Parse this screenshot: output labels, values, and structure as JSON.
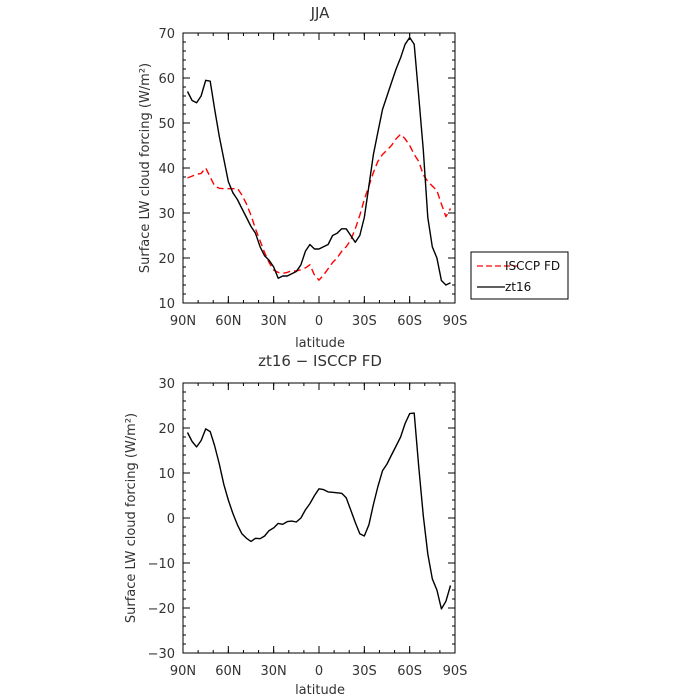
{
  "chart_data": [
    {
      "type": "line",
      "title": "JJA",
      "xlabel": "latitude",
      "ylabel": "Surface LW cloud forcing (W/m²)",
      "xlim": [
        90,
        -90
      ],
      "ylim": [
        10,
        70
      ],
      "xticks": [
        90,
        60,
        30,
        0,
        -30,
        -60,
        -90
      ],
      "xtick_labels": [
        "90N",
        "60N",
        "30N",
        "0",
        "30S",
        "60S",
        "90S"
      ],
      "yticks": [
        10,
        20,
        30,
        40,
        50,
        60,
        70
      ],
      "legend": "right",
      "series": [
        {
          "name": "ISCCP FD",
          "color": "#ff0000",
          "style": "dashed",
          "x": [
            87,
            84,
            81,
            78,
            75,
            72,
            69,
            66,
            63,
            60,
            57,
            54,
            51,
            48,
            45,
            42,
            39,
            36,
            33,
            30,
            27,
            24,
            21,
            18,
            15,
            12,
            9,
            6,
            3,
            0,
            -3,
            -6,
            -9,
            -12,
            -15,
            -18,
            -21,
            -24,
            -27,
            -30,
            -33,
            -36,
            -39,
            -42,
            -45,
            -48,
            -51,
            -54,
            -57,
            -60,
            -63,
            -66,
            -69,
            -72,
            -75,
            -78,
            -81,
            -84,
            -87
          ],
          "y": [
            37.8,
            38.2,
            38.6,
            38.8,
            40.0,
            38.0,
            36.0,
            35.5,
            35.4,
            35.4,
            35.4,
            35.5,
            34.0,
            32.0,
            29.5,
            26.5,
            23.8,
            21.2,
            19.0,
            17.3,
            16.8,
            16.6,
            16.8,
            17.2,
            17.1,
            17.4,
            17.8,
            18.5,
            16.2,
            15.1,
            16.2,
            17.6,
            19.0,
            20.0,
            21.5,
            22.5,
            24.0,
            26.5,
            29.5,
            33.0,
            36.0,
            39.0,
            41.5,
            43.0,
            44.0,
            45.0,
            46.5,
            47.5,
            46.5,
            45.0,
            43.0,
            41.5,
            38.5,
            37.0,
            36.0,
            35.0,
            32.0,
            29.2,
            31.0
          ]
        },
        {
          "name": "zt16",
          "color": "#000000",
          "style": "solid",
          "x": [
            87,
            84,
            81,
            78,
            75,
            72,
            69,
            66,
            63,
            60,
            57,
            54,
            51,
            48,
            45,
            42,
            39,
            36,
            33,
            30,
            27,
            24,
            21,
            18,
            15,
            12,
            9,
            6,
            3,
            0,
            -3,
            -6,
            -9,
            -12,
            -15,
            -18,
            -21,
            -24,
            -27,
            -30,
            -33,
            -36,
            -39,
            -42,
            -45,
            -48,
            -51,
            -54,
            -57,
            -60,
            -63,
            -66,
            -69,
            -72,
            -75,
            -78,
            -81,
            -84,
            -87
          ],
          "y": [
            57.0,
            55.0,
            54.5,
            56.0,
            59.5,
            59.3,
            53.0,
            47.0,
            42.0,
            37.0,
            34.5,
            33.0,
            31.0,
            29.0,
            27.0,
            25.5,
            22.5,
            20.5,
            19.5,
            18.0,
            15.5,
            16.0,
            16.0,
            16.5,
            17.0,
            18.5,
            21.5,
            23.0,
            22.0,
            22.0,
            22.5,
            23.0,
            25.0,
            25.5,
            26.5,
            26.5,
            25.0,
            23.5,
            25.0,
            29.0,
            36.0,
            43.0,
            48.0,
            53.0,
            56.0,
            59.0,
            62.0,
            64.5,
            67.5,
            69.0,
            67.5,
            56.0,
            44.0,
            29.0,
            22.5,
            20.0,
            15.0,
            14.0,
            14.5
          ]
        }
      ]
    },
    {
      "type": "line",
      "title": "zt16 − ISCCP FD",
      "xlabel": "latitude",
      "ylabel": "Surface LW cloud forcing (W/m²)",
      "xlim": [
        90,
        -90
      ],
      "ylim": [
        -30,
        30
      ],
      "xticks": [
        90,
        60,
        30,
        0,
        -30,
        -60,
        -90
      ],
      "xtick_labels": [
        "90N",
        "60N",
        "30N",
        "0",
        "30S",
        "60S",
        "90S"
      ],
      "yticks": [
        -30,
        -20,
        -10,
        0,
        10,
        20,
        30
      ],
      "series": [
        {
          "color": "#000000",
          "style": "solid",
          "x": [
            87,
            84,
            81,
            78,
            75,
            72,
            69,
            66,
            63,
            60,
            57,
            54,
            51,
            48,
            45,
            42,
            39,
            36,
            33,
            30,
            27,
            24,
            21,
            18,
            15,
            12,
            9,
            6,
            3,
            0,
            -3,
            -6,
            -9,
            -12,
            -15,
            -18,
            -21,
            -24,
            -27,
            -30,
            -33,
            -36,
            -39,
            -42,
            -45,
            -48,
            -51,
            -54,
            -57,
            -60,
            -63,
            -66,
            -69,
            -72,
            -75,
            -78,
            -81,
            -84,
            -87
          ],
          "y": [
            19.0,
            17.0,
            15.8,
            17.2,
            19.8,
            19.2,
            16.0,
            12.0,
            7.5,
            4.0,
            1.0,
            -1.5,
            -3.5,
            -4.5,
            -5.2,
            -4.5,
            -4.6,
            -4.0,
            -2.8,
            -2.2,
            -1.2,
            -1.4,
            -0.8,
            -0.7,
            -0.9,
            0.0,
            1.8,
            3.2,
            5.0,
            6.5,
            6.3,
            5.8,
            5.7,
            5.6,
            5.5,
            4.5,
            1.8,
            -1.0,
            -3.5,
            -4.0,
            -1.5,
            3.0,
            7.0,
            10.5,
            12.0,
            14.0,
            16.0,
            18.0,
            21.0,
            23.2,
            23.3,
            11.5,
            0.5,
            -8.0,
            -13.5,
            -16.0,
            -20.2,
            -18.5,
            -15.0
          ]
        }
      ]
    }
  ]
}
